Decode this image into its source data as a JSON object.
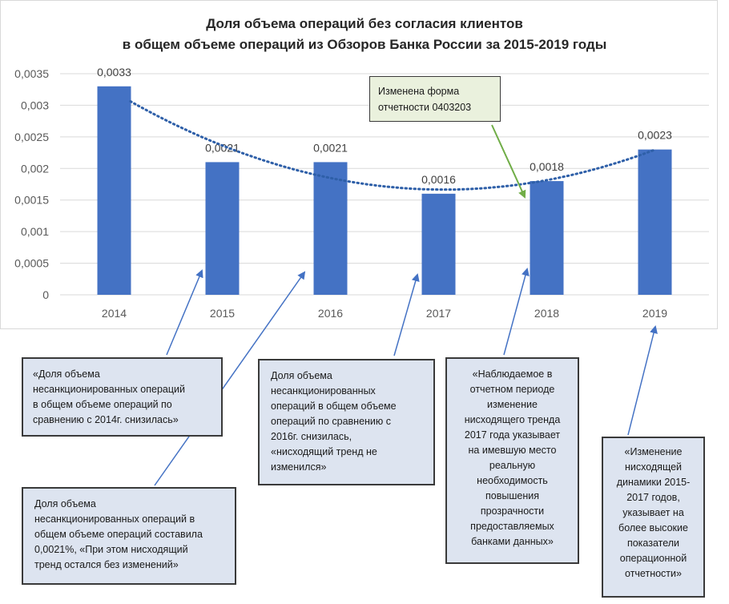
{
  "chart_data": {
    "type": "bar",
    "title_line1": "Доля объема операций без согласия клиентов",
    "title_line2": "в общем объеме операций из Обзоров Банка России за 2015-2019 годы",
    "categories": [
      "2014",
      "2015",
      "2016",
      "2017",
      "2018",
      "2019"
    ],
    "values": [
      0.0033,
      0.0021,
      0.0021,
      0.0016,
      0.0018,
      0.0023
    ],
    "value_labels": [
      "0,0033",
      "0,0021",
      "0,0021",
      "0,0016",
      "0,0018",
      "0,0023"
    ],
    "ylim": [
      0,
      0.0035
    ],
    "yticks": [
      0,
      0.0005,
      0.001,
      0.0015,
      0.002,
      0.0025,
      0.003,
      0.0035
    ],
    "ytick_labels": [
      "0",
      "0,0005",
      "0,001",
      "0,0015",
      "0,002",
      "0,0025",
      "0,003",
      "0,0035"
    ],
    "grid": true,
    "bar_color": "#4472c4",
    "trendline": "polynomial dotted",
    "trend_color": "#2e5fa8"
  },
  "annotations": {
    "note": "Изменена форма\nотчетности 0403203",
    "c1": "«Доля объема\nнесанкционированных операций\nв общем объеме операций по\nсравнению с 2014г. снизилась»",
    "c2": "Доля объема\nнесанкционированных операций в\nобщем объеме операций составила\n0,0021%, «При этом нисходящий\nтренд остался без изменений»",
    "c3": "Доля объема\nнесанкционированных\nопераций в общем объеме\nопераций по сравнению с\n2016г. снизилась,\n«нисходящий тренд не\nизменился»",
    "c4": "«Наблюдаемое в\nотчетном периоде\nизменение\nнисходящего тренда\n2017 года указывает\nна имевшую место\nреальную\nнеобходимость\nповышения\nпрозрачности\nпредоставляемых\nбанками данных»",
    "c5": "«Изменение\nнисходящей\nдинамики 2015-\n2017 годов,\nуказывает на\nболее высокие\nпоказатели\nоперационной\nотчетности»"
  },
  "colors": {
    "arrow_blue": "#4472c4",
    "arrow_green": "#70ad47",
    "callout_fill": "#dde4f0",
    "note_fill": "#eaf1dd"
  }
}
